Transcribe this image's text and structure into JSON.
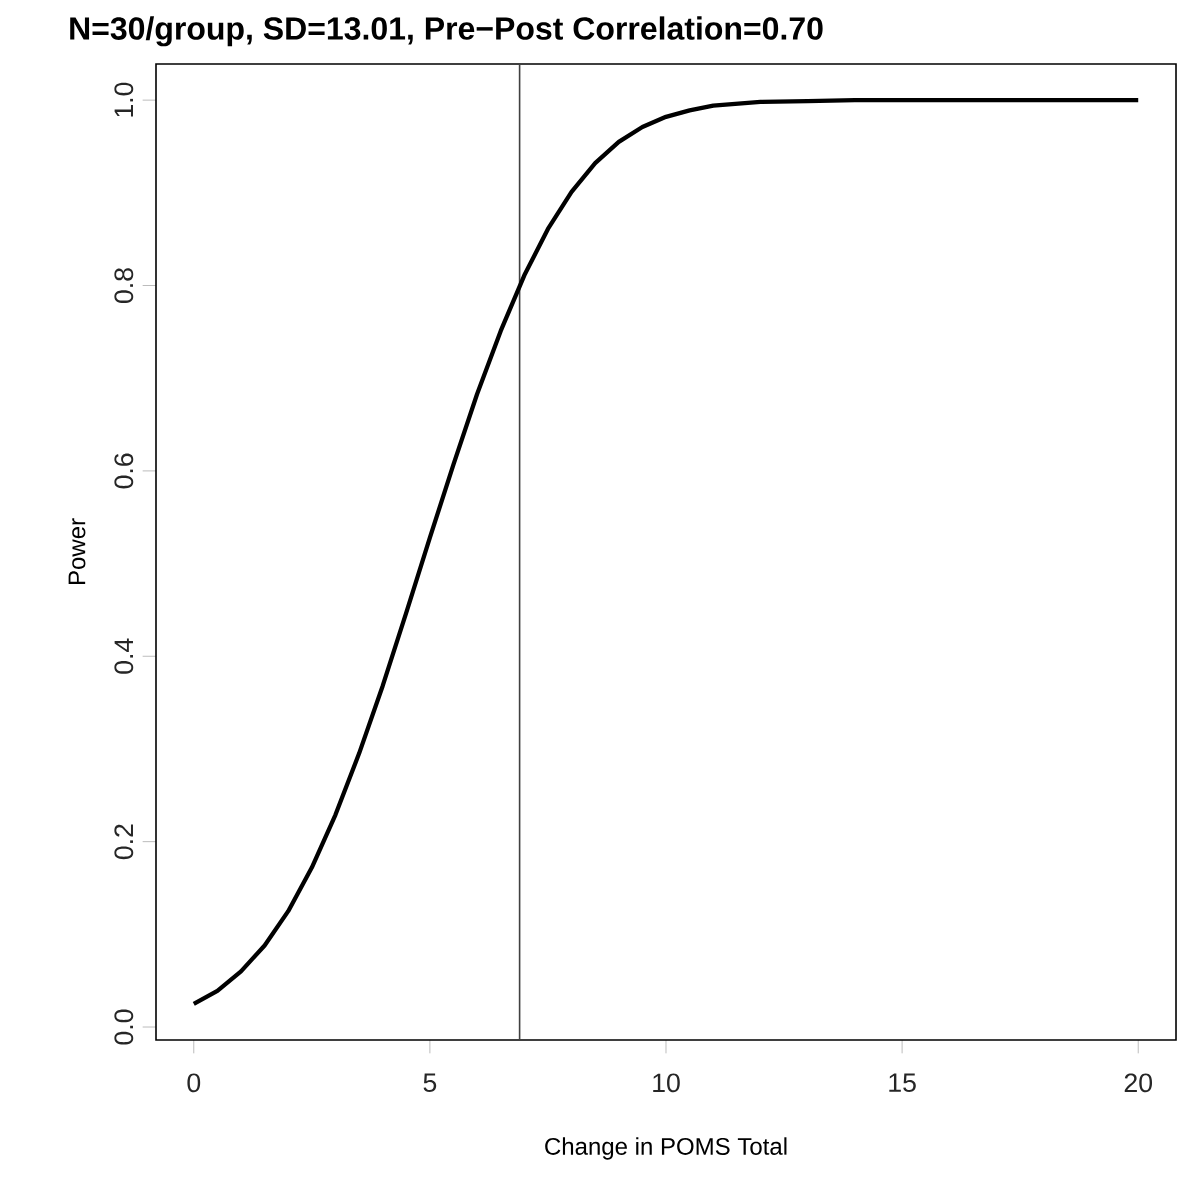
{
  "chart_data": {
    "type": "line",
    "title": "N=30/group, SD=13.01, Pre−Post Correlation=0.70",
    "xlabel": "Change in POMS Total",
    "ylabel": "Power",
    "x": [
      0,
      0.5,
      1,
      1.5,
      2,
      2.5,
      3,
      3.5,
      4,
      4.5,
      5,
      5.5,
      6,
      6.5,
      7,
      7.5,
      8,
      8.5,
      9,
      9.5,
      10,
      10.5,
      11,
      12,
      13,
      14,
      16,
      18,
      20
    ],
    "series": [
      {
        "color": "#000000",
        "values": [
          0.025,
          0.039,
          0.06,
          0.088,
          0.125,
          0.172,
          0.229,
          0.295,
          0.368,
          0.447,
          0.528,
          0.607,
          0.683,
          0.751,
          0.811,
          0.861,
          0.901,
          0.932,
          0.955,
          0.971,
          0.982,
          0.989,
          0.994,
          0.998,
          0.999,
          1.0,
          1.0,
          1.0,
          1.0
        ]
      }
    ],
    "xlim": [
      -0.8,
      20.8
    ],
    "ylim": [
      -0.014,
      1.039
    ],
    "xticks": [
      0,
      5,
      10,
      15,
      20
    ],
    "yticks": [
      {
        "value": 0,
        "label": "0.0"
      },
      0.2,
      0.4,
      0.6,
      0.8,
      {
        "value": 1,
        "label": "1.0"
      }
    ],
    "ref_lines": [
      {
        "axis": "x",
        "value": 6.9,
        "color": "#404040"
      }
    ],
    "grid": false,
    "legend": false,
    "marker": "none",
    "line_style": "solid"
  }
}
